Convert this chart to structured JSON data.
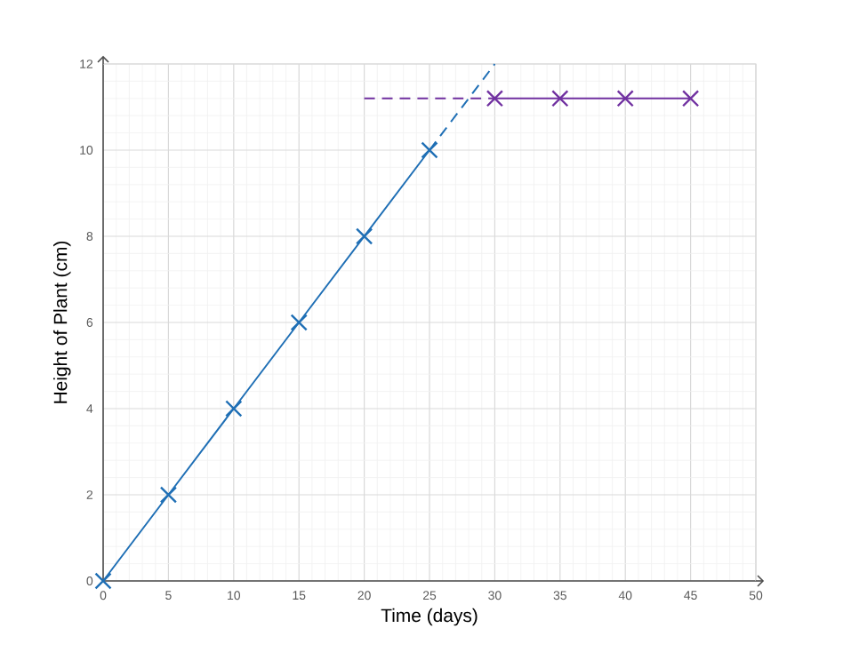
{
  "chart_data": {
    "type": "line",
    "xlabel": "Time (days)",
    "ylabel": "Height of Plant (cm)",
    "xlim": [
      0,
      50
    ],
    "xticks": [
      0,
      5,
      10,
      15,
      20,
      25,
      30,
      35,
      40,
      45,
      50
    ],
    "ylim": [
      0,
      12
    ],
    "yticks": [
      0,
      2,
      4,
      6,
      8,
      10,
      12
    ],
    "grid": true,
    "series": [
      {
        "color": "#1f6fb5",
        "x": [
          0,
          5,
          10,
          15,
          20,
          25
        ],
        "values": [
          0,
          2,
          4,
          6,
          8,
          10
        ],
        "marker": "cross",
        "line_style": "solid"
      },
      {
        "color": "#1f6fb5",
        "x": [
          25,
          30
        ],
        "values": [
          10,
          12
        ],
        "marker": "none",
        "line_style": "dashed"
      },
      {
        "color": "#7030a0",
        "x": [
          30,
          35,
          40,
          45
        ],
        "values": [
          11.2,
          11.2,
          11.2,
          11.2
        ],
        "marker": "cross",
        "line_style": "solid"
      },
      {
        "color": "#7030a0",
        "x": [
          20,
          30
        ],
        "values": [
          11.2,
          11.2
        ],
        "marker": "none",
        "line_style": "dashed"
      }
    ]
  }
}
